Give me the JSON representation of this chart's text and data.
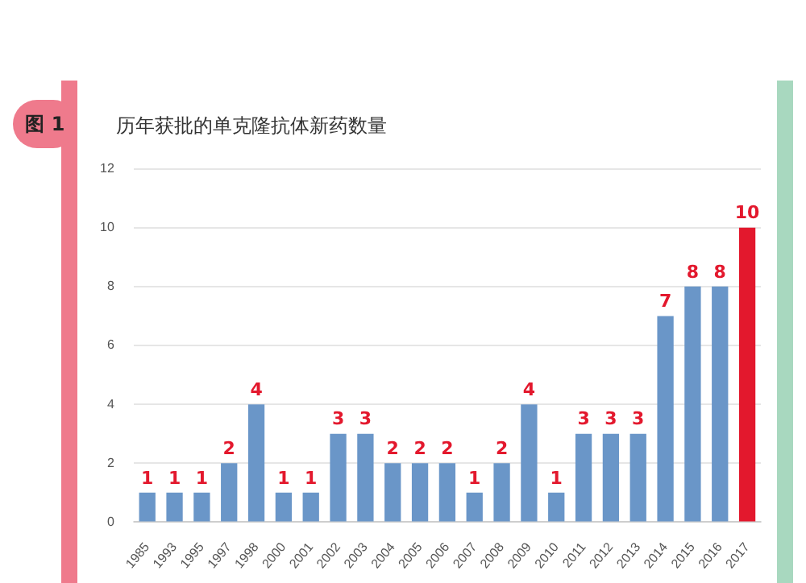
{
  "chart_data": {
    "type": "bar",
    "title": "历年获批的单克隆抗体新药数量",
    "annotations": [
      "图 1"
    ],
    "categories": [
      "1985",
      "1993",
      "1995",
      "1997",
      "1998",
      "2000",
      "2001",
      "2002",
      "2003",
      "2004",
      "2005",
      "2006",
      "2007",
      "2008",
      "2009",
      "2010",
      "2011",
      "2012",
      "2013",
      "2014",
      "2015",
      "2016",
      "2017"
    ],
    "values": [
      1,
      1,
      1,
      2,
      4,
      1,
      1,
      3,
      3,
      2,
      2,
      2,
      1,
      2,
      4,
      1,
      3,
      3,
      3,
      7,
      8,
      8,
      10
    ],
    "colors": [
      "#6a96c8",
      "#6a96c8",
      "#6a96c8",
      "#6a96c8",
      "#6a96c8",
      "#6a96c8",
      "#6a96c8",
      "#6a96c8",
      "#6a96c8",
      "#6a96c8",
      "#6a96c8",
      "#6a96c8",
      "#6a96c8",
      "#6a96c8",
      "#6a96c8",
      "#6a96c8",
      "#6a96c8",
      "#6a96c8",
      "#6a96c8",
      "#6a96c8",
      "#6a96c8",
      "#6a96c8",
      "#e3182d"
    ],
    "ylim": [
      0,
      12
    ],
    "yticks": [
      0,
      2,
      4,
      6,
      8,
      10,
      12
    ],
    "grid": "y",
    "data_labels": true,
    "legend": false
  }
}
